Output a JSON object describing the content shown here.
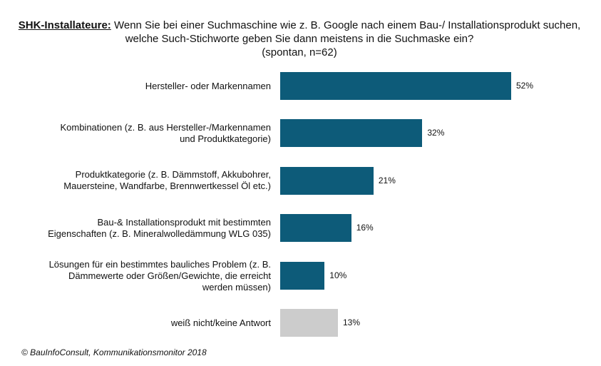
{
  "title": {
    "lead": "SHK-Installateure:",
    "text": "Wenn Sie bei einer Suchmaschine wie z. B. Google nach einem Bau-/ Installationsprodukt suchen, welche Such-Stichworte geben Sie dann meistens in die Suchmaske ein?",
    "note": "(spontan, n=62)"
  },
  "footer": "© BauInfoConsult, Kommunikationsmonitor 2018",
  "colors": {
    "primary": "#0d5b79",
    "neutral": "#cccccc"
  },
  "chart_data": {
    "type": "bar",
    "orientation": "horizontal",
    "title": "SHK-Installateure: Wenn Sie bei einer Suchmaschine wie z. B. Google nach einem Bau-/ Installationsprodukt suchen, welche Such-Stichworte geben Sie dann meistens in die Suchmaske ein? (spontan, n=62)",
    "categories": [
      "Hersteller- oder Markennamen",
      "Kombinationen (z. B. aus Hersteller-/Markennamen\nund Produktkategorie)",
      "Produktkategorie (z. B. Dämmstoff, Akkubohrer,\nMauersteine, Wandfarbe, Brennwertkessel Öl etc.)",
      "Bau-& Installationsprodukt mit bestimmten\nEigenschaften (z. B. Mineralwolledämmung WLG 035)",
      "Lösungen für ein bestimmtes bauliches Problem (z. B.\nDämmewerte oder Größen/Gewichte, die erreicht\nwerden müssen)",
      "weiß nicht/keine Antwort"
    ],
    "values": [
      52,
      32,
      21,
      16,
      10,
      13
    ],
    "value_labels": [
      "52%",
      "32%",
      "21%",
      "16%",
      "10%",
      "13%"
    ],
    "highlight": [
      "primary",
      "primary",
      "primary",
      "primary",
      "primary",
      "neutral"
    ],
    "unit": "%",
    "xlim": [
      0,
      52
    ],
    "grid": false,
    "legend": "none"
  }
}
